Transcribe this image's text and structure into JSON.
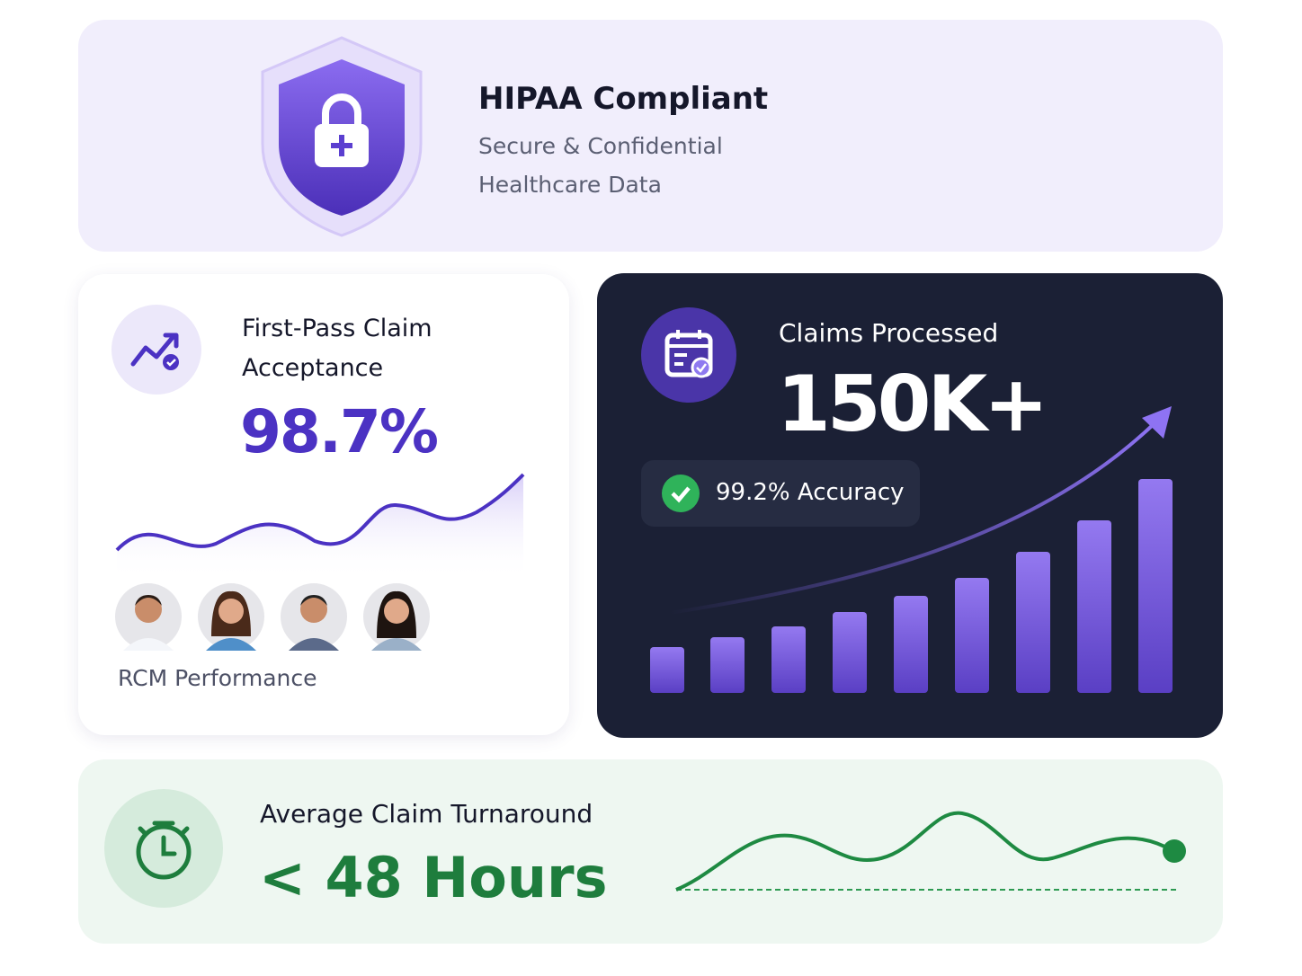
{
  "hipaa": {
    "title": "HIPAA Compliant",
    "subtitle_lines": [
      "Secure & Confidential",
      "Healthcare Data"
    ]
  },
  "first_pass": {
    "label": "First-Pass Claim Acceptance",
    "value": "98.7%",
    "footer": "RCM Performance"
  },
  "claims": {
    "label": "Claims Processed",
    "value": "150K+",
    "badge": "99.2% Accuracy"
  },
  "turnaround": {
    "label": "Average Claim Turnaround",
    "value": "< 48 Hours"
  }
}
